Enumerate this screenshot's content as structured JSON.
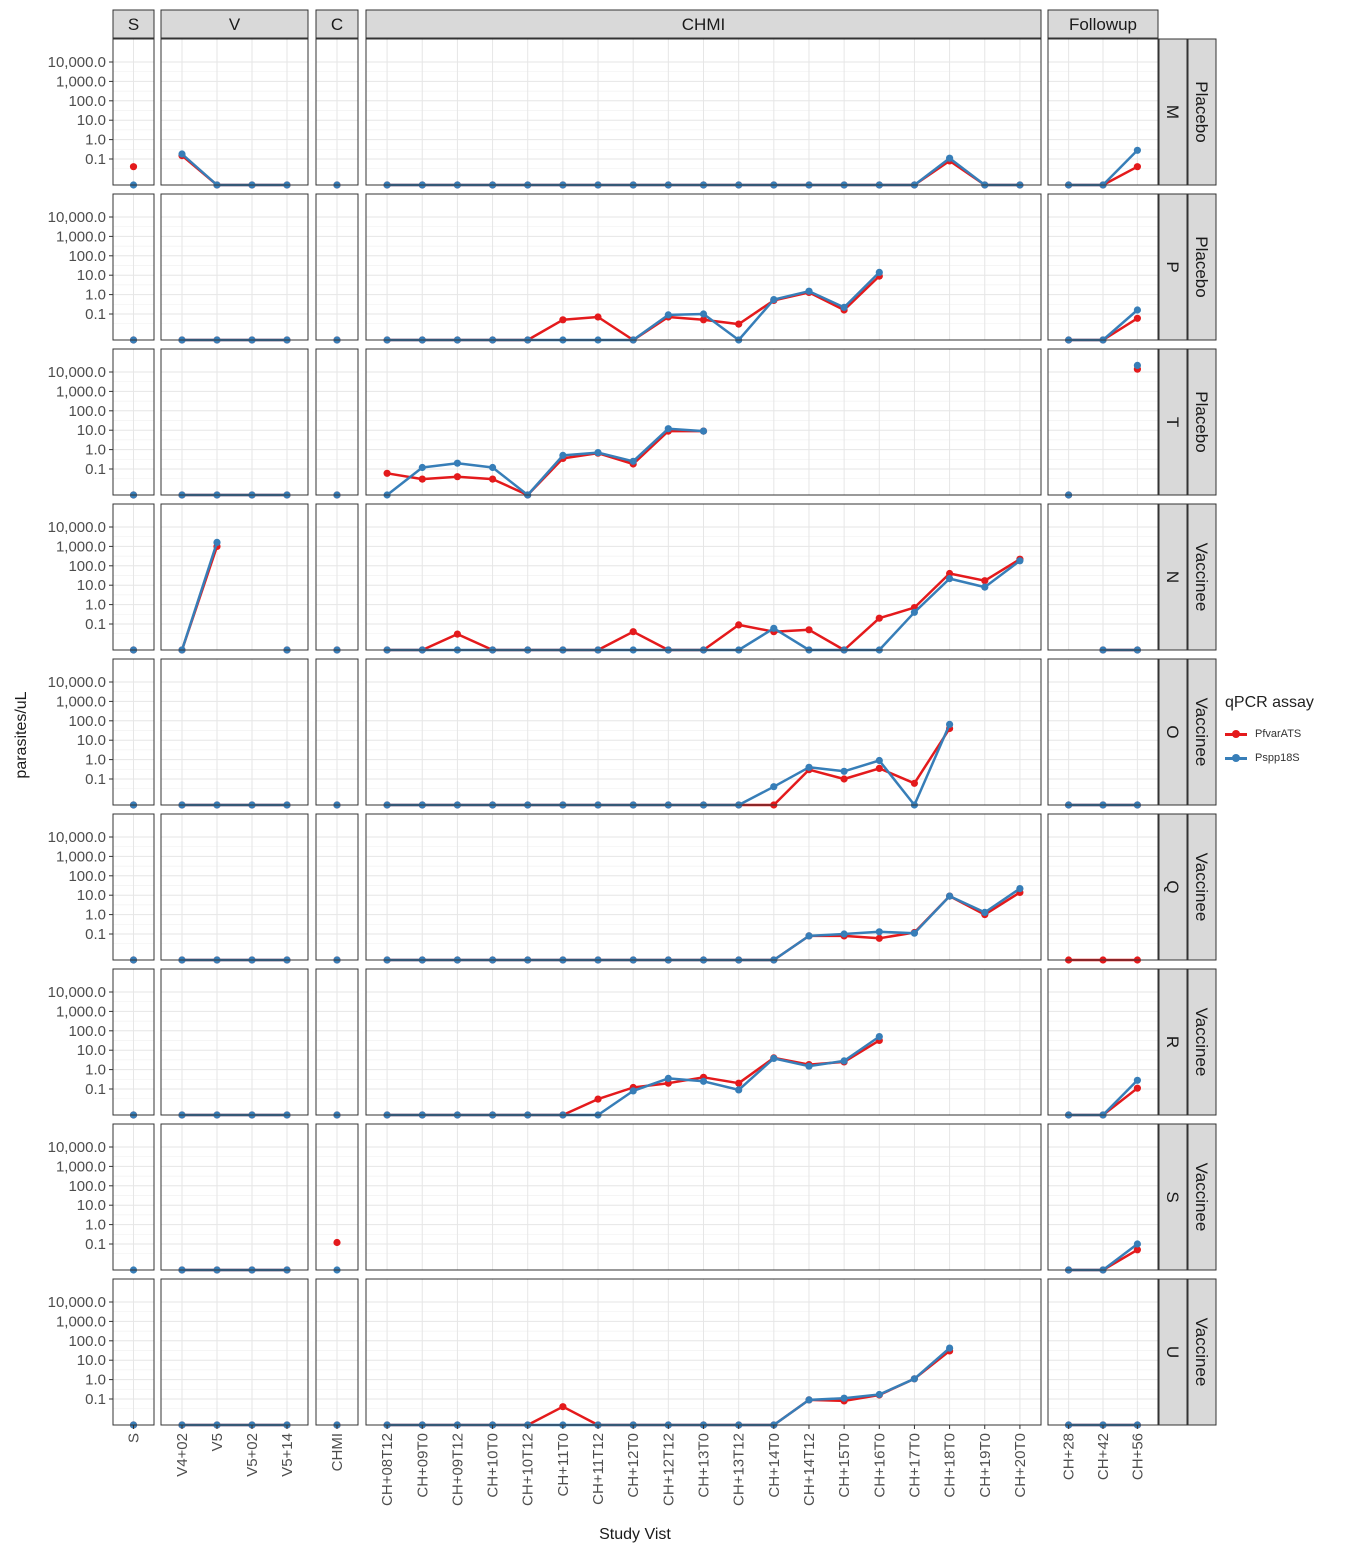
{
  "chart_data": {
    "type": "line",
    "ylabel": "parasites/uL",
    "xlabel": "Study Vist",
    "y_scale": "log10",
    "y_ticks": [
      "0.1",
      "1.0",
      "10.0",
      "100.0",
      "1,000.0",
      "10,000.0"
    ],
    "legend": {
      "title": "qPCR assay",
      "position": "right",
      "items": [
        {
          "name": "PfvarATS",
          "color": "#E41A1C"
        },
        {
          "name": "Pspp18S",
          "color": "#377EB8"
        }
      ]
    },
    "column_facets": [
      {
        "label": "S",
        "x": [
          "S"
        ]
      },
      {
        "label": "V",
        "x": [
          "V4+02",
          "V5",
          "V5+02",
          "V5+14"
        ]
      },
      {
        "label": "C",
        "x": [
          "CHMI"
        ]
      },
      {
        "label": "CHMI",
        "x": [
          "CH+08T12",
          "CH+09T0",
          "CH+09T12",
          "CH+10T0",
          "CH+10T12",
          "CH+11T0",
          "CH+11T12",
          "CH+12T0",
          "CH+12T12",
          "CH+13T0",
          "CH+13T12",
          "CH+14T0",
          "CH+14T12",
          "CH+15T0",
          "CH+16T0",
          "CH+17T0",
          "CH+18T0",
          "CH+19T0",
          "CH+20T0"
        ]
      },
      {
        "label": "Followup",
        "x": [
          "CH+28",
          "CH+42",
          "CH+56"
        ]
      }
    ],
    "row_facets": [
      {
        "subject": "M",
        "group": "Placebo"
      },
      {
        "subject": "P",
        "group": "Placebo"
      },
      {
        "subject": "T",
        "group": "Placebo"
      },
      {
        "subject": "N",
        "group": "Vaccinee"
      },
      {
        "subject": "O",
        "group": "Vaccinee"
      },
      {
        "subject": "Q",
        "group": "Vaccinee"
      },
      {
        "subject": "R",
        "group": "Vaccinee"
      },
      {
        "subject": "S",
        "group": "Vaccinee"
      },
      {
        "subject": "U",
        "group": "Vaccinee"
      }
    ],
    "zero_note": "0 = not detected (plotted at bottom of panel)",
    "series_by_row": {
      "M": {
        "PfvarATS": {
          "S": [
            0.04
          ],
          "V": [
            0.15,
            0,
            0,
            0
          ],
          "C": [
            0
          ],
          "CHMI": [
            0,
            0,
            0,
            0,
            0,
            0,
            0,
            0,
            0,
            0,
            0,
            0,
            0,
            0,
            0,
            0,
            0.08,
            0,
            0
          ],
          "Followup": [
            0,
            0,
            0.04
          ]
        },
        "Pspp18S": {
          "S": [
            0
          ],
          "V": [
            0.18,
            0,
            0,
            0
          ],
          "C": [
            0
          ],
          "CHMI": [
            0,
            0,
            0,
            0,
            0,
            0,
            0,
            0,
            0,
            0,
            0,
            0,
            0,
            0,
            0,
            0,
            0.11,
            0,
            0
          ],
          "Followup": [
            0,
            0,
            0.28
          ]
        }
      },
      "P": {
        "PfvarATS": {
          "S": [
            0
          ],
          "V": [
            0,
            0,
            0,
            0
          ],
          "C": [
            0
          ],
          "CHMI": [
            0,
            0,
            0,
            0,
            0,
            0.05,
            0.07,
            0,
            0.07,
            0.05,
            0.03,
            0.5,
            1.3,
            0.16,
            9,
            null,
            null,
            null,
            null
          ],
          "Followup": [
            0,
            0,
            0.06
          ]
        },
        "Pspp18S": {
          "S": [
            0
          ],
          "V": [
            0,
            0,
            0,
            0
          ],
          "C": [
            0
          ],
          "CHMI": [
            0,
            0,
            0,
            0,
            0,
            0,
            0,
            0,
            0.09,
            0.1,
            0,
            0.55,
            1.5,
            0.22,
            14,
            null,
            null,
            null,
            null
          ],
          "Followup": [
            0,
            0,
            0.16
          ]
        }
      },
      "T": {
        "PfvarATS": {
          "S": [
            0
          ],
          "V": [
            0,
            0,
            0,
            0
          ],
          "C": [
            0
          ],
          "CHMI": [
            0.06,
            0.03,
            0.04,
            0.03,
            0,
            0.35,
            0.65,
            0.18,
            9,
            9,
            null,
            null,
            null,
            null,
            null,
            null,
            null,
            null,
            null
          ],
          "Followup": [
            0,
            null,
            14000
          ]
        },
        "Pspp18S": {
          "S": [
            0
          ],
          "V": [
            0,
            0,
            0,
            0
          ],
          "C": [
            0
          ],
          "CHMI": [
            0,
            0.12,
            0.2,
            0.12,
            0,
            0.5,
            0.7,
            0.25,
            12,
            9,
            null,
            null,
            null,
            null,
            null,
            null,
            null,
            null,
            null
          ],
          "Followup": [
            0,
            null,
            22000
          ]
        }
      },
      "N": {
        "PfvarATS": {
          "S": [
            0
          ],
          "V": [
            0,
            1000,
            null,
            0
          ],
          "C": [
            0
          ],
          "CHMI": [
            0,
            0,
            0.03,
            0,
            0,
            0,
            0,
            0.04,
            0,
            0,
            0.09,
            0.04,
            0.05,
            0,
            0.2,
            0.7,
            40,
            17,
            220
          ],
          "Followup": [
            null,
            0,
            0
          ]
        },
        "Pspp18S": {
          "S": [
            0
          ],
          "V": [
            0,
            1600,
            null,
            0
          ],
          "C": [
            0
          ],
          "CHMI": [
            0,
            0,
            0,
            0,
            0,
            0,
            0,
            0,
            0,
            0,
            0,
            0.06,
            0,
            0,
            0,
            0.4,
            22,
            8,
            180
          ],
          "Followup": [
            null,
            0,
            0
          ]
        }
      },
      "O": {
        "PfvarATS": {
          "S": [
            0
          ],
          "V": [
            0,
            0,
            0,
            0
          ],
          "C": [
            0
          ],
          "CHMI": [
            0,
            0,
            0,
            0,
            0,
            0,
            0,
            0,
            0,
            0,
            0,
            0,
            0.3,
            0.1,
            0.35,
            0.06,
            40,
            null,
            null
          ],
          "Followup": [
            0,
            0,
            0
          ]
        },
        "Pspp18S": {
          "S": [
            0
          ],
          "V": [
            0,
            0,
            0,
            0
          ],
          "C": [
            0
          ],
          "CHMI": [
            0,
            0,
            0,
            0,
            0,
            0,
            0,
            0,
            0,
            0,
            0,
            0.04,
            0.4,
            0.25,
            0.9,
            0,
            65,
            null,
            null
          ],
          "Followup": [
            0,
            0,
            0
          ]
        }
      },
      "Q": {
        "PfvarATS": {
          "S": [
            0
          ],
          "V": [
            0,
            0,
            0,
            0
          ],
          "C": [
            0
          ],
          "CHMI": [
            0,
            0,
            0,
            0,
            0,
            0,
            0,
            0,
            0,
            0,
            0,
            0,
            0.08,
            0.08,
            0.06,
            0.12,
            9,
            1,
            14
          ],
          "Followup": [
            0,
            0,
            0
          ]
        },
        "Pspp18S": {
          "S": [
            0
          ],
          "V": [
            0,
            0,
            0,
            0
          ],
          "C": [
            0
          ],
          "CHMI": [
            0,
            0,
            0,
            0,
            0,
            0,
            0,
            0,
            0,
            0,
            0,
            0,
            0.08,
            0.1,
            0.13,
            0.11,
            9,
            1.3,
            22
          ]
        }
      },
      "R": {
        "PfvarATS": {
          "S": [
            0
          ],
          "V": [
            0,
            0,
            0,
            0
          ],
          "C": [
            0
          ],
          "CHMI": [
            0,
            0,
            0,
            0,
            0,
            0,
            0.03,
            0.12,
            0.2,
            0.4,
            0.2,
            4,
            1.8,
            2.5,
            32,
            null,
            null,
            null,
            null
          ],
          "Followup": [
            0,
            0,
            0.11
          ]
        },
        "Pspp18S": {
          "S": [
            0
          ],
          "V": [
            0,
            0,
            0,
            0
          ],
          "C": [
            0
          ],
          "CHMI": [
            0,
            0,
            0,
            0,
            0,
            0,
            0,
            0.08,
            0.35,
            0.25,
            0.09,
            3.8,
            1.5,
            2.8,
            50,
            null,
            null,
            null,
            null
          ],
          "Followup": [
            0,
            0,
            0.28
          ]
        }
      },
      "S": {
        "PfvarATS": {
          "S": [
            null
          ],
          "V": [
            0,
            0,
            0,
            0
          ],
          "C": [
            0.12
          ],
          "CHMI": [],
          "Followup": [
            0,
            0,
            0.05
          ]
        },
        "Pspp18S": {
          "S": [
            0
          ],
          "V": [
            0,
            0,
            0,
            0
          ],
          "C": [
            0
          ],
          "CHMI": [],
          "Followup": [
            0,
            0,
            0.1
          ]
        }
      },
      "U": {
        "PfvarATS": {
          "S": [
            0
          ],
          "V": [
            0,
            0,
            0,
            0
          ],
          "C": [
            0
          ],
          "CHMI": [
            0,
            0,
            0,
            0,
            0,
            0.04,
            0,
            0,
            0,
            0,
            0,
            0,
            0.09,
            0.08,
            0.16,
            1.1,
            30,
            null,
            null
          ],
          "Followup": [
            0,
            0,
            0
          ]
        },
        "Pspp18S": {
          "S": [
            0
          ],
          "V": [
            0,
            0,
            0,
            0
          ],
          "C": [
            0
          ],
          "CHMI": [
            0,
            0,
            0,
            0,
            0,
            0,
            0,
            0,
            0,
            0,
            0,
            0,
            0.09,
            0.11,
            0.17,
            1.1,
            42,
            null,
            null
          ],
          "Followup": [
            0,
            0,
            0
          ]
        }
      }
    }
  }
}
